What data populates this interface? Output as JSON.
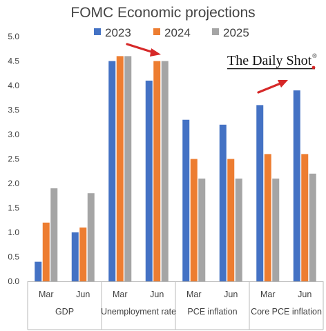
{
  "chart_data": {
    "type": "bar",
    "title": "FOMC Economic projections",
    "xlabel": "",
    "ylabel": "",
    "ylim": [
      0,
      5
    ],
    "yticks": [
      "0.0",
      "0.5",
      "1.0",
      "1.5",
      "2.0",
      "2.5",
      "3.0",
      "3.5",
      "4.0",
      "4.5",
      "5.0"
    ],
    "legend_position": "top",
    "grid": false,
    "groups": [
      {
        "label": "GDP",
        "categories": [
          "Mar",
          "Jun"
        ]
      },
      {
        "label": "Unemployment rate",
        "categories": [
          "Mar",
          "Jun"
        ]
      },
      {
        "label": "PCE inflation",
        "categories": [
          "Mar",
          "Jun"
        ]
      },
      {
        "label": "Core PCE inflation",
        "categories": [
          "Mar",
          "Jun"
        ]
      }
    ],
    "series": [
      {
        "name": "2023",
        "color": "#4472c4",
        "values": [
          0.4,
          1.0,
          4.5,
          4.1,
          3.3,
          3.2,
          3.6,
          3.9
        ]
      },
      {
        "name": "2024",
        "color": "#ed7d31",
        "values": [
          1.2,
          1.1,
          4.6,
          4.5,
          2.5,
          2.5,
          2.6,
          2.6
        ]
      },
      {
        "name": "2025",
        "color": "#a5a5a5",
        "values": [
          1.9,
          1.8,
          4.6,
          4.5,
          2.1,
          2.1,
          2.1,
          2.2
        ]
      }
    ]
  },
  "branding": {
    "text": "The Daily Shot",
    "mark": "®"
  },
  "annotations": {
    "arrow_color": "#d62828"
  }
}
